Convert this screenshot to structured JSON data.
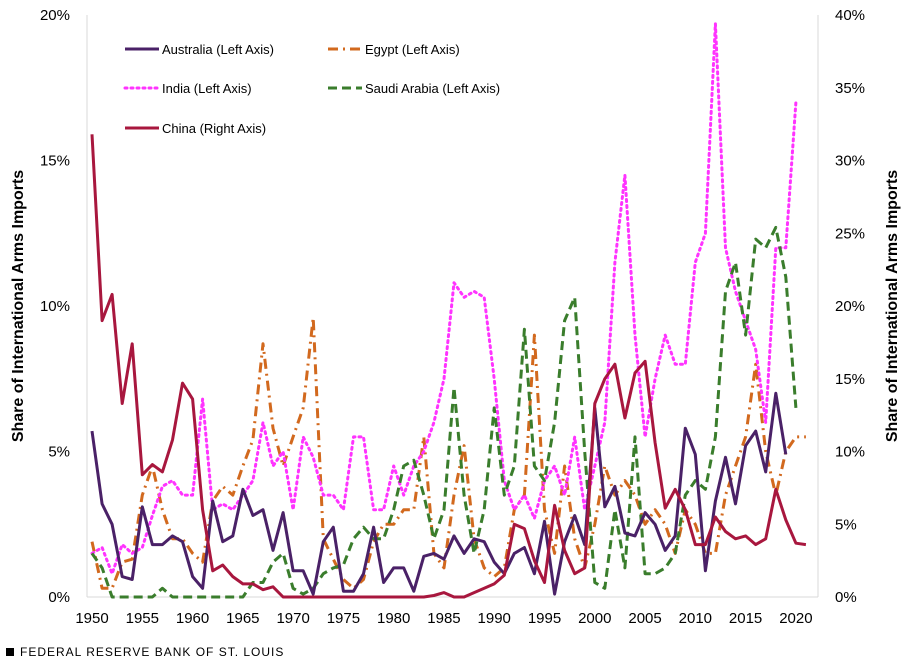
{
  "chart_data": {
    "type": "line",
    "ylabel_left": "Share of International Arms Imports",
    "ylabel_right": "Share of International Arms Imports",
    "ylim_left": [
      0,
      20
    ],
    "ylim_right": [
      0,
      40
    ],
    "yticks_left": [
      "0%",
      "5%",
      "10%",
      "15%",
      "20%"
    ],
    "yticks_right": [
      "0%",
      "5%",
      "10%",
      "15%",
      "20%",
      "25%",
      "30%",
      "35%",
      "40%"
    ],
    "xlim": [
      1949.5,
      2022.2
    ],
    "xticks": [
      1950,
      1955,
      1960,
      1965,
      1970,
      1975,
      1980,
      1985,
      1990,
      1995,
      2000,
      2005,
      2010,
      2015,
      2020
    ],
    "grid": false,
    "legend_position": "top-left",
    "start_year": 1950,
    "series": [
      {
        "name": "Australia (Left Axis)",
        "axis": "left",
        "color": "#4a2167",
        "style": "solid",
        "values": [
          5.7,
          3.2,
          2.5,
          0.7,
          0.6,
          3.1,
          1.8,
          1.8,
          2.1,
          1.9,
          0.7,
          0.3,
          3.3,
          1.9,
          2.1,
          3.7,
          2.8,
          3.0,
          1.6,
          2.9,
          0.9,
          0.9,
          0.1,
          1.9,
          2.4,
          0.2,
          0.2,
          0.8,
          2.4,
          0.5,
          1.0,
          1.0,
          0.2,
          1.4,
          1.5,
          1.3,
          2.1,
          1.5,
          2.0,
          1.9,
          1.2,
          0.8,
          1.5,
          1.7,
          0.8,
          2.6,
          0.1,
          1.9,
          2.8,
          1.8,
          6.5,
          3.1,
          3.8,
          2.2,
          2.1,
          2.9,
          2.5,
          1.6,
          2.1,
          5.8,
          4.9,
          0.9,
          3.3,
          4.8,
          3.2,
          5.2,
          5.7,
          4.3,
          7.0,
          4.9
        ]
      },
      {
        "name": "Egypt  (Left Axis)",
        "axis": "left",
        "color": "#d2691e",
        "style": "dashdot",
        "values": [
          1.9,
          0.3,
          0.3,
          1.2,
          1.3,
          3.5,
          4.5,
          3.0,
          2.0,
          2.0,
          1.5,
          1.2,
          3.3,
          3.8,
          3.5,
          4.5,
          5.4,
          8.7,
          5.8,
          4.5,
          5.5,
          6.5,
          9.6,
          2.0,
          1.3,
          0.6,
          0.3,
          0.6,
          1.9,
          2.5,
          2.5,
          3.0,
          3.0,
          5.5,
          1.5,
          1.0,
          3.5,
          5.2,
          2.0,
          1.0,
          0.7,
          1.0,
          3.0,
          3.5,
          9.0,
          3.0,
          1.5,
          4.5,
          2.0,
          1.0,
          2.5,
          4.5,
          3.5,
          4.0,
          3.5,
          2.5,
          3.0,
          2.5,
          1.5,
          3.0,
          2.5,
          1.5,
          1.5,
          3.5,
          4.5,
          5.5,
          8.0,
          5.0,
          3.5,
          5.0,
          5.5,
          5.5
        ]
      },
      {
        "name": "India  (Left Axis)",
        "axis": "left",
        "color": "#ff33ff",
        "style": "dotted",
        "values": [
          1.5,
          1.7,
          0.8,
          1.8,
          1.5,
          1.7,
          2.8,
          3.8,
          4.0,
          3.5,
          3.5,
          6.8,
          3.0,
          3.2,
          3.0,
          3.5,
          4.0,
          6.0,
          4.5,
          5.0,
          3.0,
          5.5,
          4.8,
          3.5,
          3.5,
          3.0,
          5.5,
          5.5,
          3.0,
          3.0,
          4.5,
          3.5,
          4.5,
          5.0,
          6.0,
          7.5,
          10.8,
          10.3,
          10.5,
          10.3,
          7.5,
          4.0,
          3.0,
          3.5,
          2.7,
          4.0,
          4.5,
          3.5,
          5.5,
          3.0,
          4.5,
          6.0,
          11.5,
          14.5,
          9.0,
          5.5,
          7.5,
          9.0,
          8.0,
          8.0,
          11.5,
          12.5,
          19.7,
          12.0,
          10.5,
          9.5,
          8.5,
          6.0,
          12.0,
          12.0,
          17.0
        ]
      },
      {
        "name": "Saudi Arabia  (Left Axis)",
        "axis": "left",
        "color": "#3a7d2c",
        "style": "dashed",
        "values": [
          1.5,
          1.0,
          0.0,
          0.0,
          0.0,
          0.0,
          0.0,
          0.3,
          0.0,
          0.0,
          0.0,
          0.0,
          0.0,
          0.0,
          0.0,
          0.0,
          0.5,
          0.5,
          1.2,
          1.5,
          0.3,
          0.1,
          0.3,
          0.8,
          1.0,
          1.1,
          2.0,
          2.4,
          2.0,
          2.0,
          3.0,
          4.5,
          4.7,
          3.5,
          2.0,
          3.0,
          7.2,
          3.5,
          1.5,
          3.0,
          6.5,
          3.5,
          4.5,
          9.2,
          4.5,
          4.0,
          6.0,
          9.5,
          10.3,
          5.0,
          0.5,
          0.3,
          3.0,
          1.0,
          5.5,
          0.8,
          0.8,
          1.0,
          1.5,
          3.5,
          4.0,
          3.7,
          5.5,
          10.5,
          11.5,
          9.0,
          12.3,
          12.0,
          12.7,
          11.0,
          6.5
        ]
      },
      {
        "name": "China (Right Axis)",
        "axis": "right",
        "color": "#a8173e",
        "style": "solid",
        "values": [
          31.8,
          19.0,
          20.8,
          13.3,
          17.4,
          8.4,
          9.1,
          8.6,
          10.8,
          14.7,
          13.6,
          6.0,
          1.8,
          2.2,
          1.4,
          0.9,
          0.9,
          0.5,
          0.7,
          0.0,
          0.0,
          0.0,
          0.0,
          0.0,
          0.0,
          0.0,
          0.0,
          0.0,
          0.0,
          0.0,
          0.0,
          0.0,
          0.0,
          0.0,
          0.1,
          0.3,
          0.0,
          0.0,
          0.3,
          0.6,
          0.9,
          1.5,
          5.0,
          4.7,
          2.5,
          1.0,
          6.3,
          3.2,
          1.6,
          2.0,
          13.3,
          15.0,
          16.0,
          12.3,
          15.4,
          16.2,
          10.6,
          6.1,
          7.4,
          6.0,
          3.6,
          3.6,
          5.5,
          4.5,
          4.0,
          4.2,
          3.6,
          4.0,
          7.4,
          5.3,
          3.7,
          3.6
        ]
      }
    ]
  },
  "footer": {
    "source": "FEDERAL RESERVE BANK OF ST. LOUIS"
  }
}
